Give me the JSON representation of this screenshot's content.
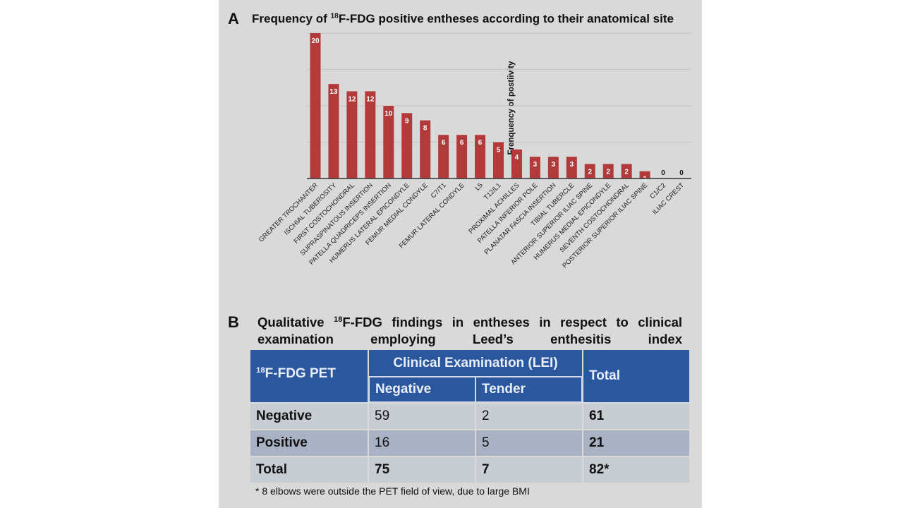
{
  "panel_a": {
    "letter": "A",
    "title_pre": "Frequency of ",
    "title_sup": "18",
    "title_post": "F-FDG positive entheses according to their anatomical site"
  },
  "chart_data": {
    "type": "bar",
    "title": "Frequency of 18F-FDG positive entheses according to their anatomical site",
    "xlabel": "",
    "ylabel": "Frenquency of postiivity",
    "ylim": [
      0,
      20
    ],
    "grid": true,
    "gridlines_every": 5,
    "bar_color": "#b33a3a",
    "categories": [
      "GREATER TROCHANTER",
      "ISCHIAL TUBEROSITY",
      "FIRST COSTOCHONDRAL",
      "SUPRASPINATOUS INSERTION",
      "PATELLA QUADRICEPS INSERTION",
      "HUMERUS LATERAL EPICONDYLE",
      "FEMUR MEDIAL CONDYLE",
      "C7/T1",
      "FEMUR LATERAL CONDYLE",
      "L5",
      "T12/L1",
      "PROXIMAL ACHILLES",
      "PATELLA INFERIOR POLE",
      "PLANATAR FASCIA INSERTION",
      "TIBIAL TUBERCLE",
      "ANTERIOR SUPERIOR ILIAC SPINE",
      "HUMERUS MEDIAL EPICONDYLE",
      "SEVENTH COSTOCHONDRAL",
      "POSTERIOR SUPERIOR ILIAC SPINE",
      "C1/C2",
      "ILIAC CREST"
    ],
    "values": [
      20,
      13,
      12,
      12,
      10,
      9,
      8,
      6,
      6,
      6,
      5,
      4,
      3,
      3,
      3,
      2,
      2,
      2,
      1,
      0,
      0
    ]
  },
  "panel_b": {
    "letter": "B",
    "title_line1_pre": "Qualitative ",
    "title_line1_sup": "18",
    "title_line1_post": "F-FDG findings in entheses in respect to clinical",
    "title_line2": "examination employing Leed’s enthesitis index",
    "table": {
      "col0_sup": "18",
      "col0_header": "F-FDG PET",
      "group_header": "Clinical Examination (LEI)",
      "sub_headers": [
        "Negative",
        "Tender"
      ],
      "total_header": "Total",
      "rows": [
        [
          "Negative",
          "59",
          "2",
          "61"
        ],
        [
          "Positive",
          "16",
          "5",
          "21"
        ],
        [
          "Total",
          "75",
          "7",
          "82*"
        ]
      ]
    },
    "footnote": "* 8 elbows were outside the PET field of view, due to large BMI"
  }
}
